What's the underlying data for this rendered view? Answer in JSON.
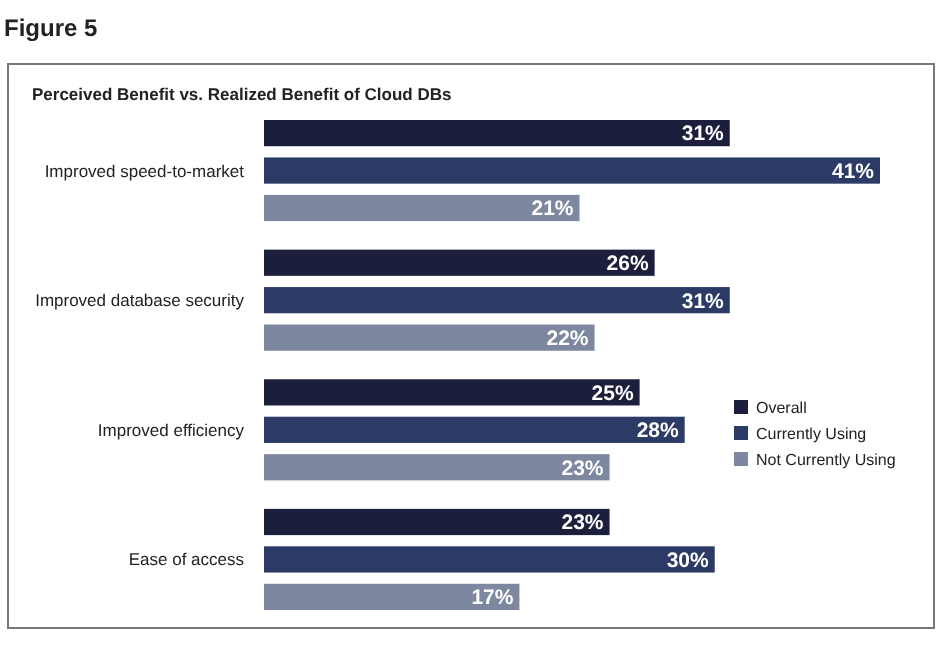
{
  "chart_data": {
    "type": "bar",
    "orientation": "horizontal",
    "title": "Figure 5",
    "subtitle": "Perceived Benefit vs. Realized Benefit of Cloud DBs",
    "categories": [
      "Improved speed-to-market",
      "Improved database security",
      "Improved efficiency",
      "Ease of access"
    ],
    "series": [
      {
        "name": "Overall",
        "color": "#1b1f3b",
        "values": [
          31,
          26,
          25,
          23
        ],
        "value_labels": [
          "31%",
          "26%",
          "25%",
          "23%"
        ]
      },
      {
        "name": "Currently Using",
        "color": "#2c3a66",
        "values": [
          41,
          31,
          28,
          30
        ],
        "value_labels": [
          "41%",
          "31%",
          "28%",
          "30%"
        ]
      },
      {
        "name": "Not Currently Using",
        "color": "#7d879f",
        "values": [
          21,
          22,
          23,
          17
        ],
        "value_labels": [
          "21%",
          "22%",
          "23%",
          "17%"
        ]
      }
    ],
    "legend": "right",
    "grid": false
  }
}
